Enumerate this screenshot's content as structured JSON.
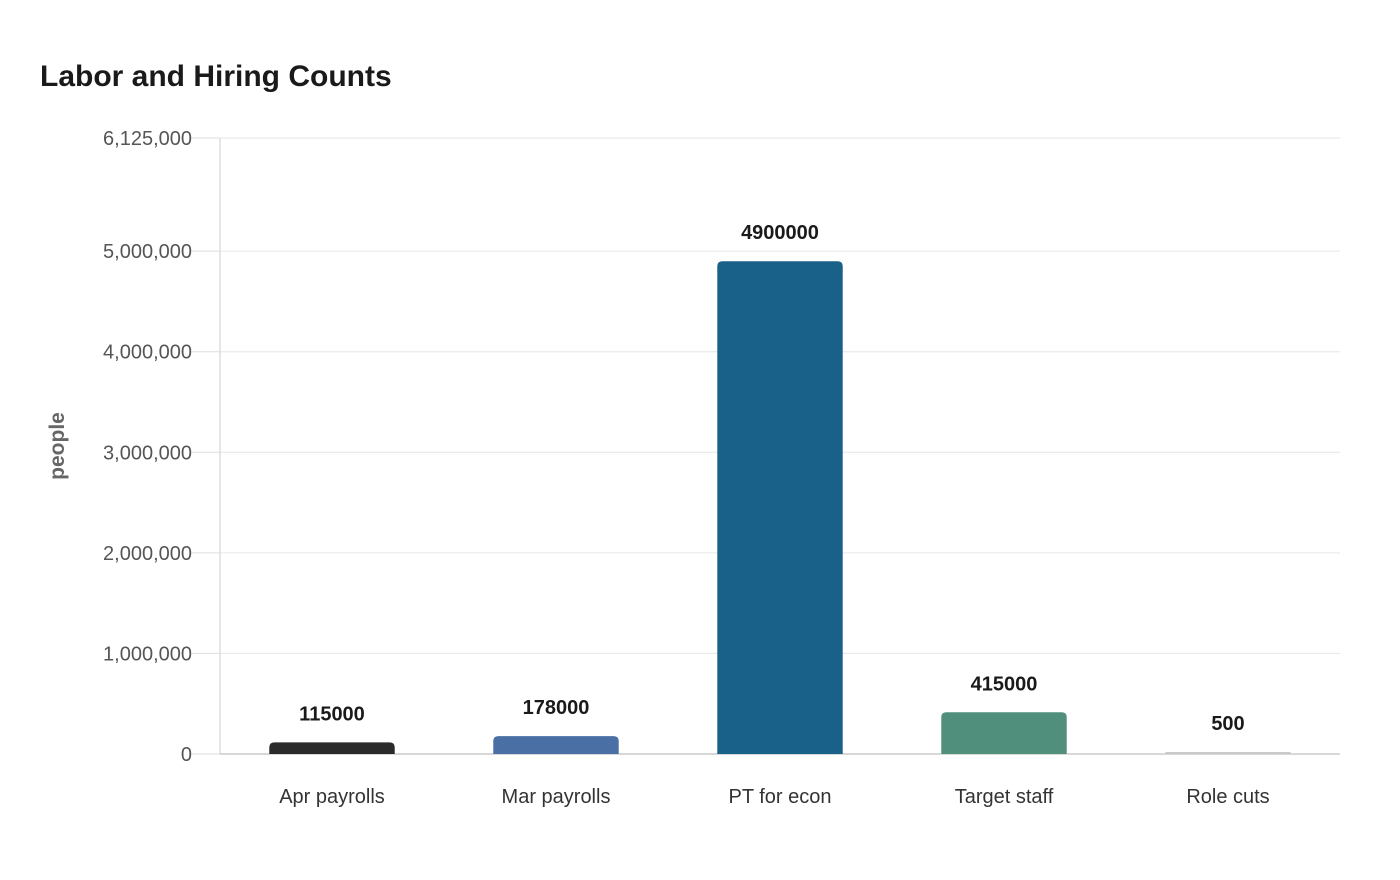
{
  "chart_data": {
    "type": "bar",
    "title": "Labor and Hiring Counts",
    "xlabel": "",
    "ylabel": "people",
    "categories": [
      "Apr payrolls",
      "Mar payrolls",
      "PT for econ",
      "Target staff",
      "Role cuts"
    ],
    "values": [
      115000,
      178000,
      4900000,
      415000,
      500
    ],
    "data_labels": [
      "115000",
      "178000",
      "4900000",
      "415000",
      "500"
    ],
    "colors": [
      "#2b2b2b",
      "#4a6fa5",
      "#1a6189",
      "#4f8f7c",
      "#c9c9c9"
    ],
    "ylim": [
      0,
      6125000
    ],
    "yticks": [
      0,
      1000000,
      2000000,
      3000000,
      4000000,
      5000000,
      6125000
    ],
    "ytick_labels": [
      "0",
      "1,000,000",
      "2,000,000",
      "3,000,000",
      "4,000,000",
      "5,000,000",
      "6,125,000"
    ],
    "grid": true,
    "legend": "none"
  }
}
